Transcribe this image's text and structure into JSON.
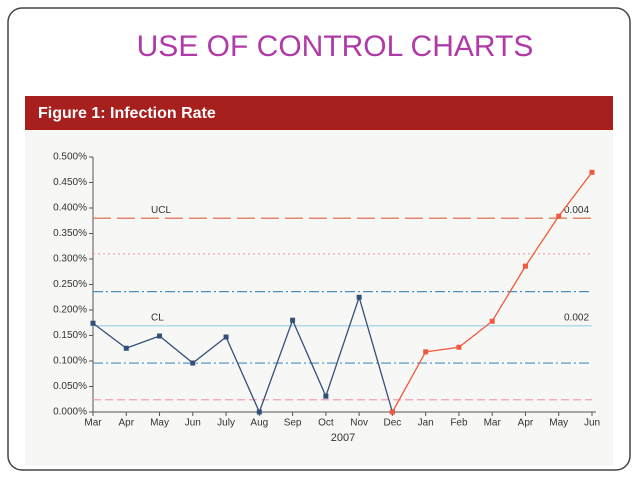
{
  "slide_title": "USE OF CONTROL CHARTS",
  "chart_data": {
    "type": "line",
    "title": "Figure 1: Infection Rate",
    "xlabel": "2007",
    "categories": [
      "Mar",
      "Apr",
      "May",
      "Jun",
      "July",
      "Aug",
      "Sep",
      "Oct",
      "Nov",
      "Dec",
      "Jan",
      "Feb",
      "Mar",
      "Apr",
      "May",
      "Jun"
    ],
    "series": [
      {
        "color": "#34507a",
        "values": [
          0.174,
          0.125,
          0.149,
          0.096,
          0.147,
          0,
          0.18,
          0.031,
          0.225,
          0,
          null,
          null,
          null,
          null,
          null,
          null
        ]
      },
      {
        "color": "#f05a3c",
        "values": [
          null,
          null,
          null,
          null,
          null,
          null,
          null,
          null,
          null,
          0,
          0.118,
          0.127,
          0.178,
          0.286,
          0.384,
          0.47
        ]
      }
    ],
    "ylim": [
      0,
      0.5
    ],
    "yticks": [
      {
        "value": 0,
        "label": "0.000%"
      },
      {
        "value": 0.05,
        "label": "0.050%"
      },
      {
        "value": 0.1,
        "label": "0.100%"
      },
      {
        "value": 0.15,
        "label": "0.150%"
      },
      {
        "value": 0.2,
        "label": "0.200%"
      },
      {
        "value": 0.25,
        "label": "0.250%"
      },
      {
        "value": 0.3,
        "label": "0.300%"
      },
      {
        "value": 0.35,
        "label": "0.350%"
      },
      {
        "value": 0.4,
        "label": "0.400%"
      },
      {
        "value": 0.45,
        "label": "0.450%"
      },
      {
        "value": 0.5,
        "label": "0.500%"
      }
    ],
    "reference_lines": [
      {
        "value": 0.38,
        "color": "#e0603c",
        "dash": "18 6",
        "label": "UCL",
        "right_label": "0.004"
      },
      {
        "value": 0.31,
        "color": "#f2a0b8",
        "dash": "2 3"
      },
      {
        "value": 0.236,
        "color": "#4a90c0",
        "dash": "10 3 2 3"
      },
      {
        "value": 0.169,
        "color": "#9ad0e8",
        "dash": "none",
        "label": "CL",
        "right_label": "0.002"
      },
      {
        "value": 0.096,
        "color": "#4a90c0",
        "dash": "10 3 2 3"
      },
      {
        "value": 0.024,
        "color": "#f2a0b8",
        "dash": "8 4"
      }
    ]
  }
}
